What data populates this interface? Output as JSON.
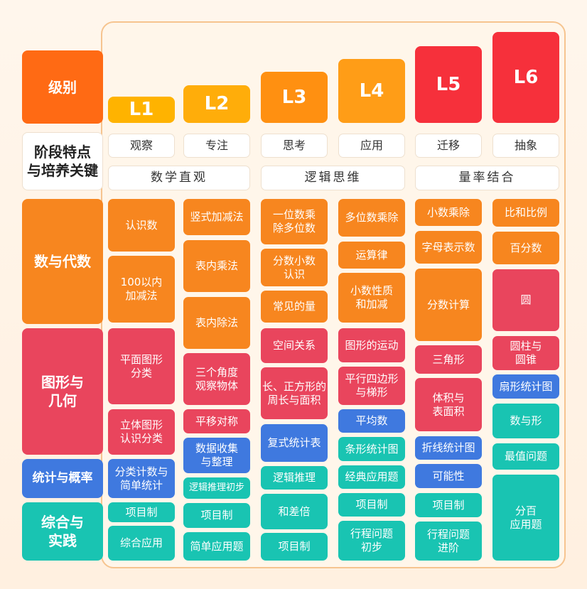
{
  "colors": {
    "orange": "#f7861f",
    "red": "#e9455d",
    "blue": "#3f79df",
    "teal": "#19c4b2",
    "level_label": "#ff6a14",
    "l1": "#ffb300",
    "l2": "#ffad0a",
    "l3": "#ff9011",
    "l4": "#ff9d17",
    "l5": "#f6303b",
    "l6": "#f6303b"
  },
  "categories": {
    "level": "级别",
    "stage": "阶段特点\n与培养关键",
    "number": "数与代数",
    "geometry": "图形与\n几何",
    "statistics": "统计与概率",
    "practice": "综合与\n实践"
  },
  "levels": [
    "L1",
    "L2",
    "L3",
    "L4",
    "L5",
    "L6"
  ],
  "traits": [
    "观察",
    "专注",
    "思考",
    "应用",
    "迁移",
    "抽象"
  ],
  "stages": [
    "数学直观",
    "逻辑思维",
    "量率结合"
  ],
  "col1": [
    "认识数",
    "100以内\n加减法",
    "平面图形\n分类",
    "立体图形\n认识分类",
    "分类计数与\n简单统计",
    "项目制",
    "综合应用"
  ],
  "col2": [
    "竖式加减法",
    "表内乘法",
    "表内除法",
    "三个角度\n观察物体",
    "平移对称",
    "数据收集\n与整理",
    "逻辑推理初步",
    "项目制",
    "简单应用题"
  ],
  "col3": [
    "一位数乘\n除多位数",
    "分数小数\n认识",
    "常见的量",
    "空间关系",
    "长、正方形的\n周长与面积",
    "复式统计表",
    "逻辑推理",
    "和差倍",
    "项目制"
  ],
  "col4": [
    "多位数乘除",
    "运算律",
    "小数性质\n和加减",
    "图形的运动",
    "平行四边形\n与梯形",
    "平均数",
    "条形统计图",
    "经典应用题",
    "项目制",
    "行程问题\n初步"
  ],
  "col5": [
    "小数乘除",
    "字母表示数",
    "分数计算",
    "三角形",
    "体积与\n表面积",
    "折线统计图",
    "可能性",
    "项目制",
    "行程问题\n进阶"
  ],
  "col6": [
    "比和比例",
    "百分数",
    "圆",
    "圆柱与\n圆锥",
    "扇形统计图",
    "数与形",
    "最值问题",
    "分百\n应用题"
  ]
}
